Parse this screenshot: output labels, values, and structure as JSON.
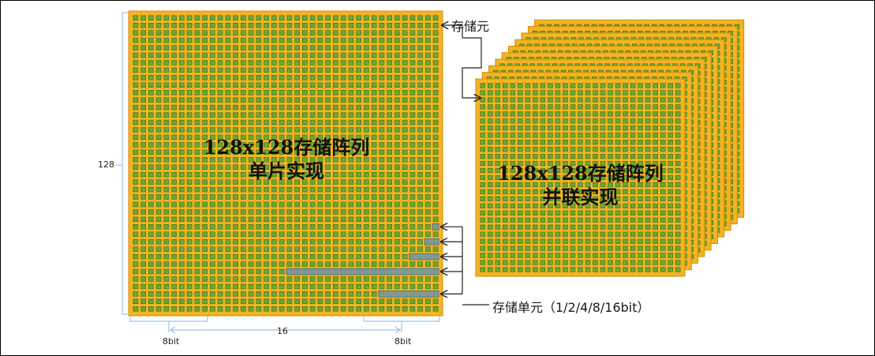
{
  "colors": {
    "chip_fill": "#f5b324",
    "chip_border": "#d28c00",
    "cell_fill": "#6aa834",
    "cell_border": "#2f6f16",
    "highlight_fill": "#7c9a9a",
    "bracket": "#9cc3e6",
    "arrow": "#222222"
  },
  "single_array": {
    "title_line1": "128x128存储阵列",
    "title_line2": "单片实现",
    "side_label": "128"
  },
  "parallel_array": {
    "title_line1": "128x128存储阵列",
    "title_line2": "并联实现"
  },
  "labels": {
    "storage_element": "存储元",
    "storage_unit": "存储单元（1/2/4/8/16bit）",
    "bottom_left": "8bit",
    "bottom_middle": "16",
    "bottom_right": "8bit"
  }
}
